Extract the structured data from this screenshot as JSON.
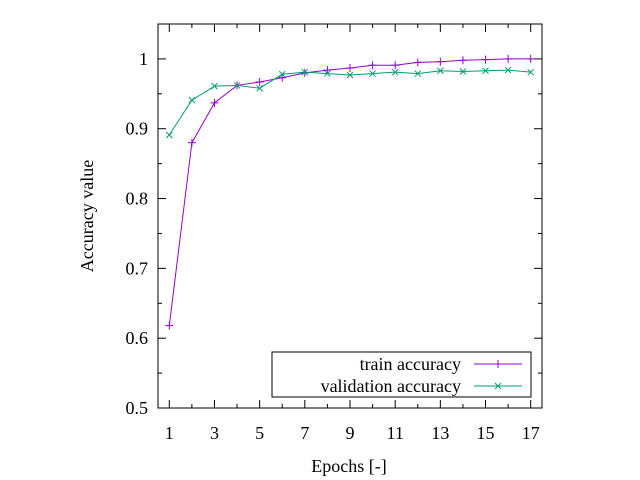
{
  "chart_data": {
    "type": "line",
    "xlabel": "Epochs [-]",
    "ylabel": "Accuracy value",
    "xlim": [
      0.5,
      17.5
    ],
    "ylim": [
      0.5,
      1.05
    ],
    "xticks": [
      1,
      3,
      5,
      7,
      9,
      11,
      13,
      15,
      17
    ],
    "xtick_labels": [
      "1",
      "3",
      "5",
      "7",
      "9",
      "11",
      "13",
      "15",
      "17"
    ],
    "yticks": [
      0.5,
      0.6,
      0.7,
      0.8,
      0.9,
      1.0
    ],
    "ytick_labels": [
      "0.5",
      "0.6",
      "0.7",
      "0.8",
      "0.9",
      "1"
    ],
    "grid": false,
    "legend_position": "bottom-right",
    "x": [
      1,
      2,
      3,
      4,
      5,
      6,
      7,
      8,
      9,
      10,
      11,
      12,
      13,
      14,
      15,
      16,
      17
    ],
    "series": [
      {
        "name": "train accuracy",
        "color": "#9400d3",
        "marker": "plus",
        "values": [
          0.618,
          0.88,
          0.937,
          0.962,
          0.967,
          0.973,
          0.98,
          0.984,
          0.987,
          0.991,
          0.991,
          0.995,
          0.996,
          0.998,
          0.999,
          1.0,
          1.0
        ]
      },
      {
        "name": "validation accuracy",
        "color": "#009e73",
        "marker": "cross",
        "values": [
          0.891,
          0.941,
          0.961,
          0.962,
          0.958,
          0.978,
          0.981,
          0.979,
          0.977,
          0.979,
          0.981,
          0.979,
          0.983,
          0.982,
          0.983,
          0.984,
          0.981
        ]
      }
    ]
  }
}
